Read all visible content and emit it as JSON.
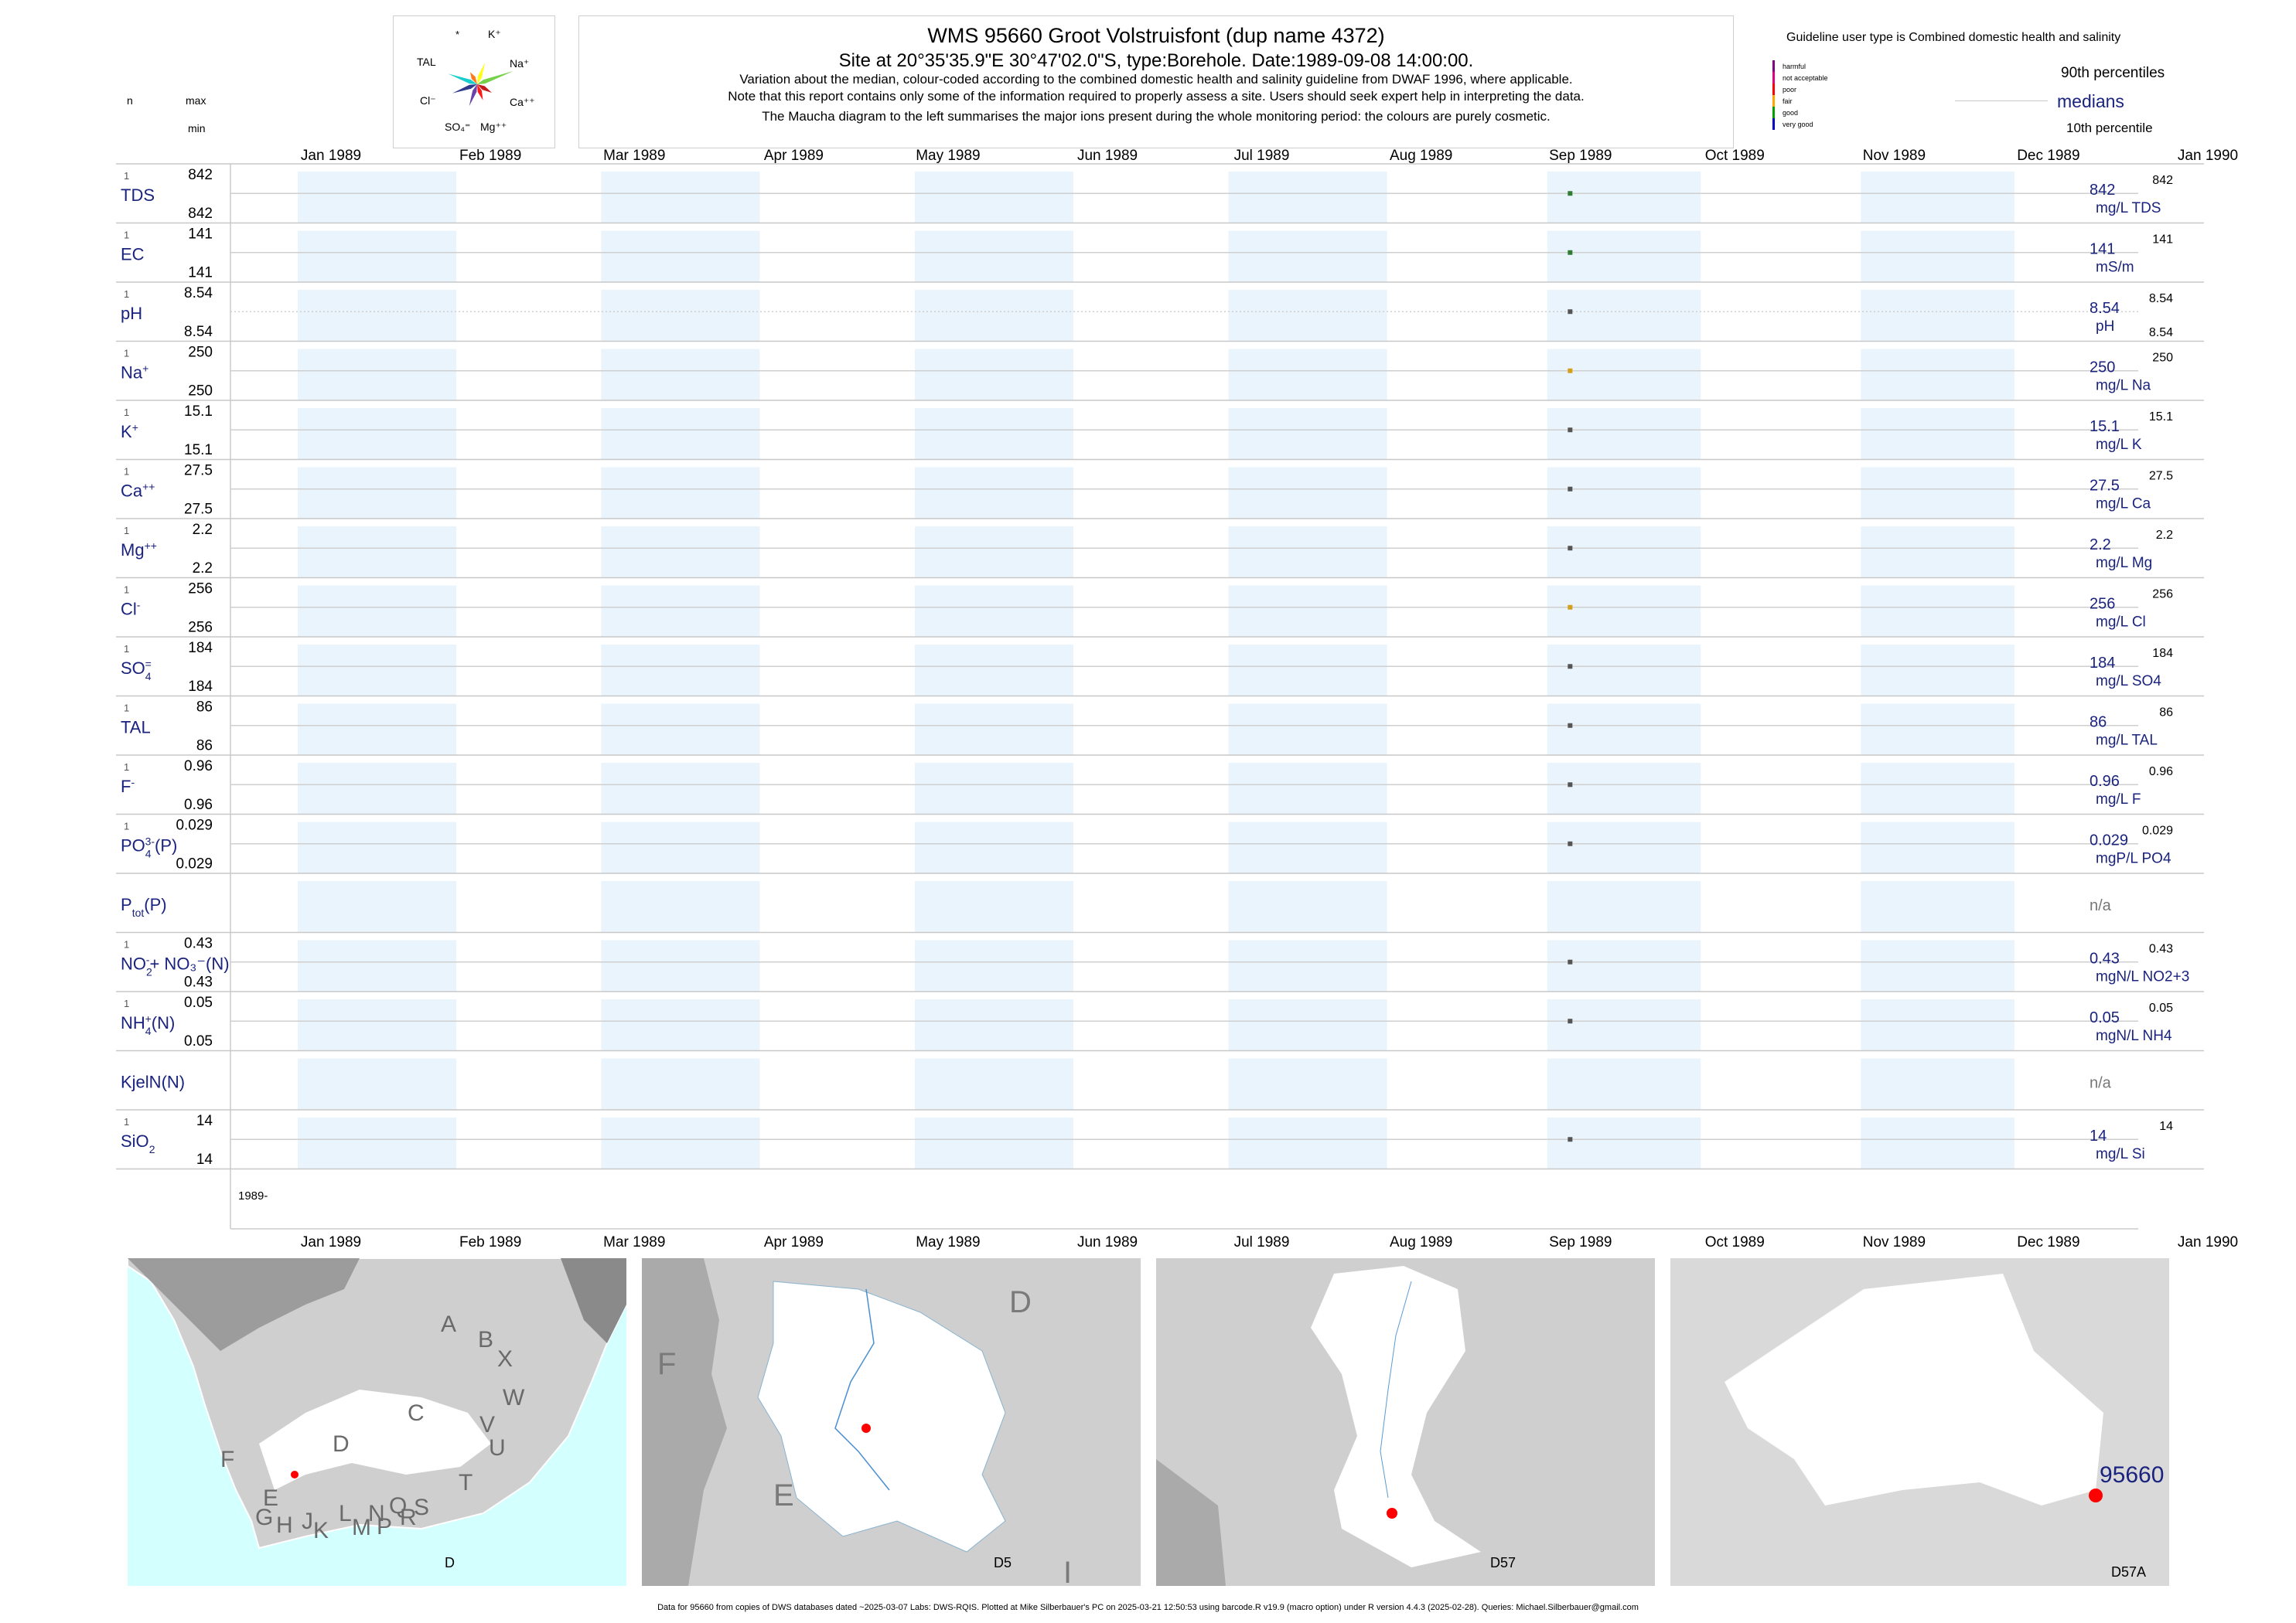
{
  "header": {
    "title": "WMS 95660  Groot Volstruisfont (dup name 4372)",
    "subtitle": "Site at 20°35'35.9\"E 30°47'02.0\"S, type:Borehole. Date:1989-09-08 14:00:00.",
    "note1": "Variation about the median,  colour-coded according to the combined domestic health and salinity guideline from DWAF 1996, where applicable.",
    "note2": "Note that this report contains only some of the information required to properly assess a site. Users should seek expert help in interpreting the data.",
    "note3": "The Maucha diagram to the left summarises the major ions present during the whole monitoring period: the colours are purely cosmetic."
  },
  "maucha": {
    "labels": [
      "*",
      "K⁺",
      "TAL",
      "Na⁺",
      "Cl⁻",
      "Ca⁺⁺",
      "SO₄⁼",
      "Mg⁺⁺"
    ],
    "colors": [
      "#ff6a00",
      "#ffff00",
      "#00c8c8",
      "#66cc33",
      "#1a237e",
      "#c00000",
      "#5a2ca0",
      "#ff0000"
    ]
  },
  "legend": {
    "guideline_title": "Guideline user type is Combined domestic health and salinity",
    "scale": [
      {
        "label": "harmful",
        "color": "#800080"
      },
      {
        "label": "not acceptable",
        "color": "#e0007a"
      },
      {
        "label": "poor",
        "color": "#ff0000"
      },
      {
        "label": "fair",
        "color": "#ffa500"
      },
      {
        "label": "good",
        "color": "#00a000"
      },
      {
        "label": "very good",
        "color": "#0000c8"
      }
    ],
    "p90": "90th percentiles",
    "medians": "medians",
    "p10": "10th percentile"
  },
  "columns": {
    "n": "n",
    "max": "max",
    "min": "min"
  },
  "chart_data": {
    "type": "scatter",
    "x_axis_type": "date",
    "xlim": [
      "1989-01-01",
      "1990-01-01"
    ],
    "month_labels": [
      "Jan 1989",
      "Feb 1989",
      "Mar 1989",
      "Apr 1989",
      "May 1989",
      "Jun 1989",
      "Jul 1989",
      "Aug 1989",
      "Sep 1989",
      "Oct 1989",
      "Nov 1989",
      "Dec 1989",
      "Jan 1990"
    ],
    "sample_date": "1989-09-08",
    "year_label": "1989-",
    "series": [
      {
        "name": "TDS",
        "n": "1",
        "max": "842",
        "min": "842",
        "value": 842,
        "median": "842",
        "unit": "mg/L TDS",
        "p90": "842",
        "p10": "",
        "color": "#2e7d32"
      },
      {
        "name": "EC",
        "n": "1",
        "max": "141",
        "min": "141",
        "value": 141,
        "median": "141",
        "unit": "mS/m",
        "p90": "141",
        "p10": "",
        "color": "#2e7d32"
      },
      {
        "name": "pH",
        "n": "1",
        "max": "8.54",
        "min": "8.54",
        "value": 8.54,
        "median": "8.54",
        "unit": "pH",
        "p90": "8.54",
        "p10": "8.54",
        "color": "#555555"
      },
      {
        "name": "Na",
        "sup": "+",
        "n": "1",
        "max": "250",
        "min": "250",
        "value": 250,
        "median": "250",
        "unit": "mg/L Na",
        "p90": "250",
        "p10": "",
        "color": "#d4a017"
      },
      {
        "name": "K",
        "sup": "+",
        "n": "1",
        "max": "15.1",
        "min": "15.1",
        "value": 15.1,
        "median": "15.1",
        "unit": "mg/L K",
        "p90": "15.1",
        "p10": "",
        "color": "#555555"
      },
      {
        "name": "Ca",
        "sup": "++",
        "n": "1",
        "max": "27.5",
        "min": "27.5",
        "value": 27.5,
        "median": "27.5",
        "unit": "mg/L Ca",
        "p90": "27.5",
        "p10": "",
        "color": "#555555"
      },
      {
        "name": "Mg",
        "sup": "++",
        "n": "1",
        "max": "2.2",
        "min": "2.2",
        "value": 2.2,
        "median": "2.2",
        "unit": "mg/L Mg",
        "p90": "2.2",
        "p10": "",
        "color": "#555555"
      },
      {
        "name": "Cl",
        "sup": "-",
        "n": "1",
        "max": "256",
        "min": "256",
        "value": 256,
        "median": "256",
        "unit": "mg/L Cl",
        "p90": "256",
        "p10": "",
        "color": "#d4a017"
      },
      {
        "name": "SO",
        "sub": "4",
        "sup": "=",
        "n": "1",
        "max": "184",
        "min": "184",
        "value": 184,
        "median": "184",
        "unit": "mg/L SO4",
        "p90": "184",
        "p10": "",
        "color": "#555555"
      },
      {
        "name": "TAL",
        "n": "1",
        "max": "86",
        "min": "86",
        "value": 86,
        "median": "86",
        "unit": "mg/L TAL",
        "p90": "86",
        "p10": "",
        "color": "#555555"
      },
      {
        "name": "F",
        "sup": "-",
        "n": "1",
        "max": "0.96",
        "min": "0.96",
        "value": 0.96,
        "median": "0.96",
        "unit": "mg/L F",
        "p90": "0.96",
        "p10": "",
        "color": "#555555"
      },
      {
        "name": "PO",
        "sub": "4",
        "sup": "3-",
        "tail": "(P)",
        "n": "1",
        "max": "0.029",
        "min": "0.029",
        "value": 0.029,
        "median": "0.029",
        "unit": "mgP/L PO4",
        "p90": "0.029",
        "p10": "",
        "color": "#555555"
      },
      {
        "name": "P",
        "sub": "tot",
        "tail": "(P)",
        "n": "",
        "max": "",
        "min": "",
        "value": null,
        "median": "n/a",
        "unit": "",
        "p90": "",
        "p10": "",
        "color": "#555555"
      },
      {
        "name": "NO",
        "sub": "2",
        "sup": "-",
        "tail": "+ NO₃⁻(N)",
        "n": "1",
        "max": "0.43",
        "min": "0.43",
        "value": 0.43,
        "median": "0.43",
        "unit": "mgN/L NO2+3",
        "p90": "0.43",
        "p10": "",
        "color": "#555555"
      },
      {
        "name": "NH",
        "sub": "4",
        "sup": "+",
        "tail": "(N)",
        "n": "1",
        "max": "0.05",
        "min": "0.05",
        "value": 0.05,
        "median": "0.05",
        "unit": "mgN/L NH4",
        "p90": "0.05",
        "p10": "",
        "color": "#555555"
      },
      {
        "name": "KjelN(N)",
        "n": "",
        "max": "",
        "min": "",
        "value": null,
        "median": "n/a",
        "unit": "",
        "p90": "",
        "p10": "",
        "color": "#555555"
      },
      {
        "name": "SiO",
        "sub": "2",
        "n": "1",
        "max": "14",
        "min": "14",
        "value": 14,
        "median": "14",
        "unit": "mg/L Si",
        "p90": "14",
        "p10": "",
        "color": "#555555"
      }
    ]
  },
  "maps": [
    {
      "label": "D",
      "regions": [
        "A",
        "B",
        "X",
        "C",
        "W",
        "V",
        "U",
        "T",
        "D",
        "F",
        "E",
        "G",
        "H",
        "J",
        "K",
        "L",
        "M",
        "N",
        "P",
        "Q",
        "R",
        "S"
      ]
    },
    {
      "label": "D5",
      "regions": [
        "D",
        "F",
        "E",
        "I"
      ]
    },
    {
      "label": "D57"
    },
    {
      "label": "D57A",
      "site_label": "95660"
    }
  ],
  "footer": "Data for 95660 from copies of DWS databases dated ~2025-03-07 Labs: DWS-RQIS. Plotted at Mike Silberbauer's PC on 2025-03-21 12:50:53 using barcode.R v19.9 (macro option) under R version 4.4.3 (2025-02-28). Queries: Michael.Silberbauer@gmail.com"
}
